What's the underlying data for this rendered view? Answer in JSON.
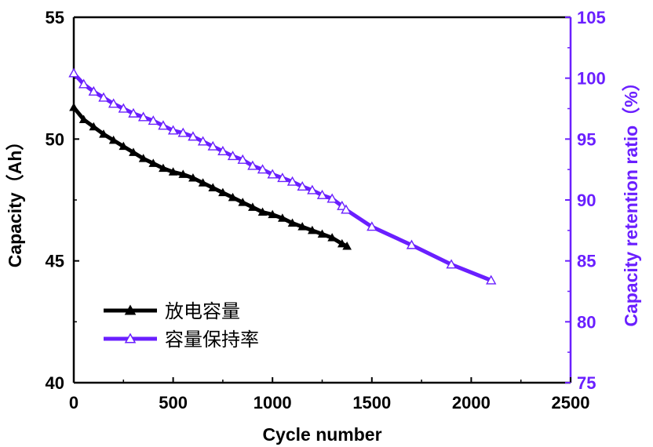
{
  "chart_data": {
    "type": "line",
    "xlabel": "Cycle number",
    "ylabel_left": "Capacity（Ah）",
    "ylabel_right": "Capacity retention ratio（%）",
    "xlim": [
      0,
      2500
    ],
    "ylim_left": [
      40,
      55
    ],
    "ylim_right": [
      75,
      105
    ],
    "x_ticks": [
      "0",
      "500",
      "1000",
      "1500",
      "2000",
      "2500"
    ],
    "y_ticks_left": [
      "40",
      "45",
      "50",
      "55"
    ],
    "y_ticks_right": [
      "75",
      "80",
      "85",
      "90",
      "95",
      "100",
      "105"
    ],
    "legend_position": "bottom-left",
    "colors": {
      "capacity": "#000000",
      "retention": "#6a1fff",
      "axis": "#000000",
      "right_axis": "#6a1fff"
    },
    "series": [
      {
        "name": "放电容量",
        "axis": "left",
        "marker": "filled-triangle",
        "x": [
          0,
          50,
          100,
          150,
          200,
          250,
          300,
          350,
          400,
          450,
          500,
          550,
          600,
          650,
          700,
          750,
          800,
          850,
          900,
          950,
          1000,
          1050,
          1100,
          1150,
          1200,
          1250,
          1300,
          1350,
          1375
        ],
        "y": [
          51.3,
          50.8,
          50.5,
          50.2,
          49.95,
          49.7,
          49.45,
          49.2,
          49.0,
          48.8,
          48.65,
          48.55,
          48.4,
          48.2,
          48.0,
          47.8,
          47.6,
          47.4,
          47.2,
          47.0,
          46.9,
          46.75,
          46.55,
          46.4,
          46.25,
          46.1,
          45.95,
          45.7,
          45.6
        ]
      },
      {
        "name": "容量保持率",
        "axis": "right",
        "marker": "open-triangle",
        "x": [
          0,
          50,
          100,
          150,
          200,
          250,
          300,
          350,
          400,
          450,
          500,
          550,
          600,
          650,
          700,
          750,
          800,
          850,
          900,
          950,
          1000,
          1050,
          1100,
          1150,
          1200,
          1250,
          1300,
          1350,
          1370,
          1500,
          1700,
          1900,
          2100
        ],
        "y": [
          100.4,
          99.5,
          98.9,
          98.4,
          97.9,
          97.5,
          97.1,
          96.8,
          96.5,
          96.1,
          95.7,
          95.5,
          95.2,
          94.8,
          94.4,
          94.0,
          93.6,
          93.3,
          92.8,
          92.5,
          92.1,
          91.8,
          91.5,
          91.1,
          90.8,
          90.4,
          90.1,
          89.5,
          89.2,
          87.8,
          86.3,
          84.7,
          83.4
        ]
      }
    ]
  }
}
